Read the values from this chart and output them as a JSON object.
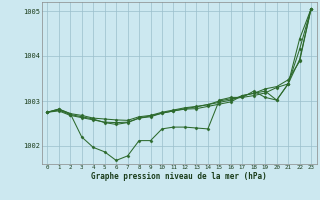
{
  "xlabel": "Graphe pression niveau de la mer (hPa)",
  "background_color": "#cce8f0",
  "grid_color": "#9bbfcc",
  "line_color": "#2d6a2d",
  "marker_color": "#2d6a2d",
  "ylim": [
    1001.6,
    1005.2
  ],
  "xlim": [
    -0.5,
    23.5
  ],
  "yticks": [
    1002,
    1003,
    1004,
    1005
  ],
  "xticks": [
    0,
    1,
    2,
    3,
    4,
    5,
    6,
    7,
    8,
    9,
    10,
    11,
    12,
    13,
    14,
    15,
    16,
    17,
    18,
    19,
    20,
    21,
    22,
    23
  ],
  "series": [
    [
      1002.75,
      1002.82,
      1002.72,
      1002.68,
      1002.62,
      1002.6,
      1002.58,
      1002.57,
      1002.65,
      1002.68,
      1002.75,
      1002.8,
      1002.85,
      1002.88,
      1002.92,
      1003.0,
      1003.05,
      1003.08,
      1003.12,
      1003.18,
      1003.3,
      1003.38,
      1004.38,
      1005.05
    ],
    [
      1002.75,
      1002.82,
      1002.72,
      1002.2,
      1001.97,
      1001.87,
      1001.68,
      1001.78,
      1002.12,
      1002.12,
      1002.38,
      1002.42,
      1002.42,
      1002.4,
      1002.38,
      1003.02,
      1003.08,
      1003.08,
      1003.22,
      1003.08,
      1003.02,
      1003.38,
      1003.92,
      1005.05
    ],
    [
      1002.75,
      1002.8,
      1002.7,
      1002.65,
      1002.6,
      1002.52,
      1002.48,
      1002.52,
      1002.62,
      1002.65,
      1002.73,
      1002.78,
      1002.83,
      1002.87,
      1002.92,
      1002.97,
      1003.02,
      1003.12,
      1003.17,
      1003.22,
      1003.02,
      1003.38,
      1004.15,
      1005.05
    ],
    [
      1002.75,
      1002.78,
      1002.68,
      1002.63,
      1002.58,
      1002.53,
      1002.52,
      1002.53,
      1002.62,
      1002.67,
      1002.73,
      1002.78,
      1002.82,
      1002.83,
      1002.88,
      1002.93,
      1002.98,
      1003.12,
      1003.17,
      1003.27,
      1003.32,
      1003.47,
      1003.88,
      1005.05
    ]
  ]
}
